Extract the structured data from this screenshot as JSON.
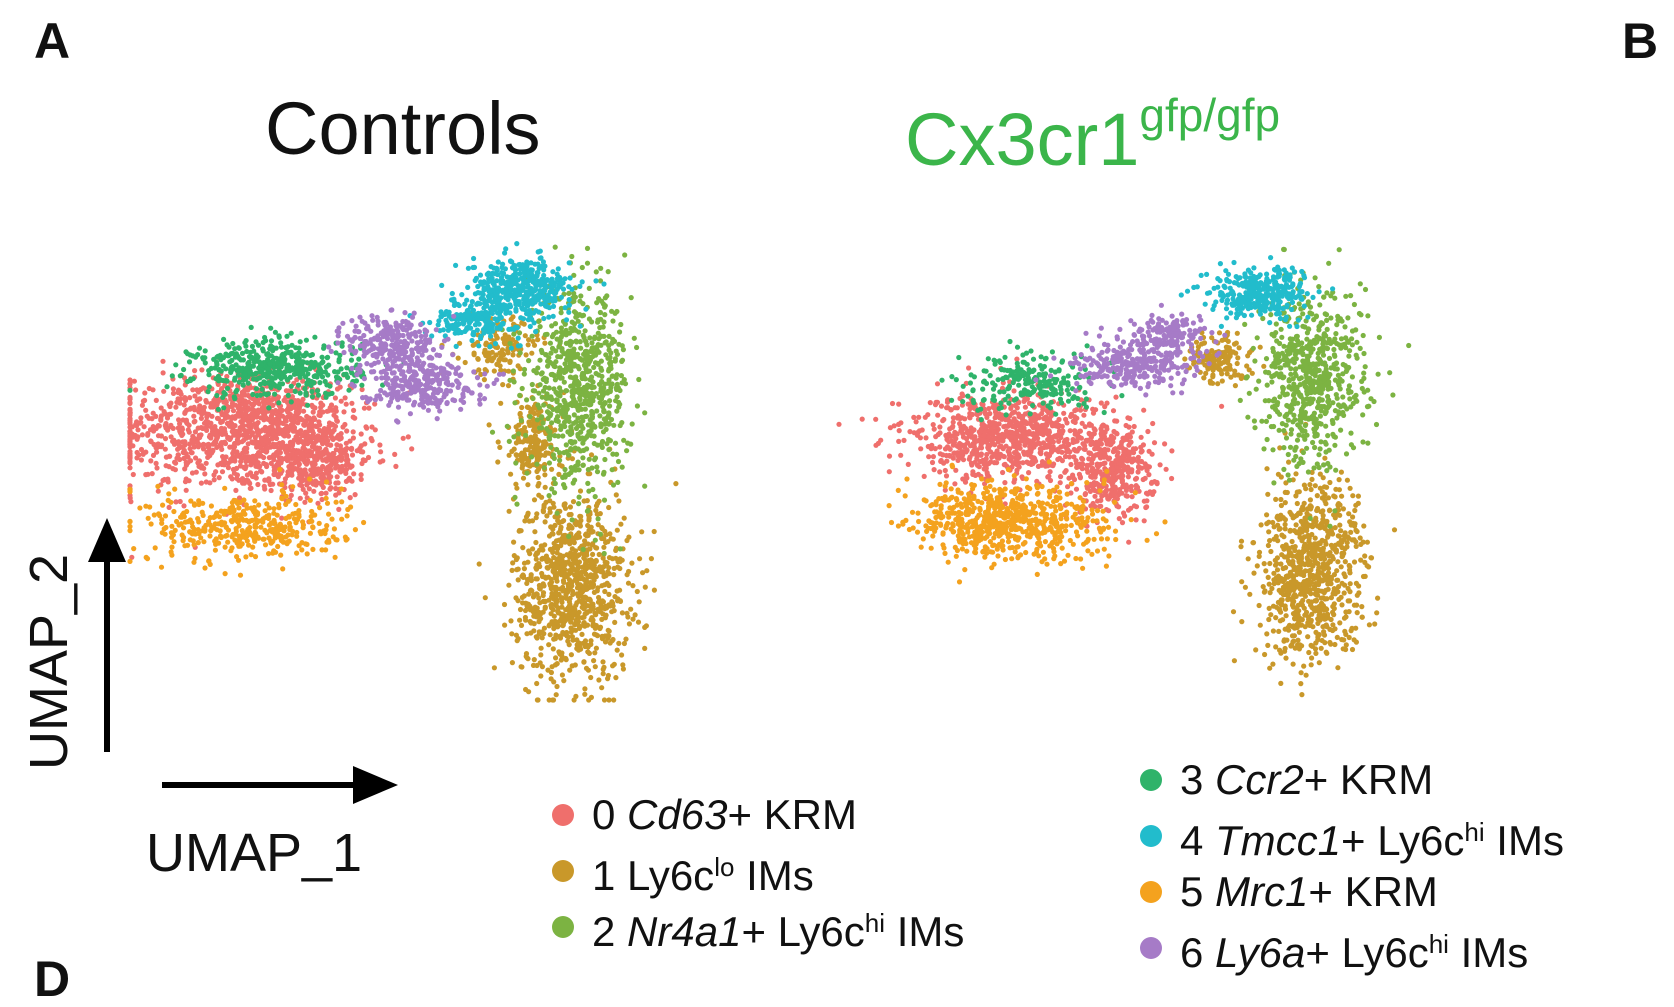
{
  "panels": {
    "a_letter": "A",
    "b_letter": "B",
    "d_letter": "D"
  },
  "titles": {
    "controls": "Controls",
    "mutant_base": "Cx3cr1",
    "mutant_sup": "gfp/gfp",
    "mutant_color": "#3bb54a"
  },
  "axes": {
    "x_label": "UMAP_1",
    "y_label": "UMAP_2"
  },
  "legend": [
    {
      "id": "0",
      "pre": "0 ",
      "italic": "Cd63",
      "post": "+ KRM",
      "sup": "",
      "tail": "",
      "color": "#ef6f6c"
    },
    {
      "id": "1",
      "pre": "1 Ly6c",
      "italic": "",
      "post": "",
      "sup": "lo",
      "tail": " IMs",
      "color": "#c9982a"
    },
    {
      "id": "2",
      "pre": "2 ",
      "italic": "Nr4a1",
      "post": "+ Ly6c",
      "sup": "hi",
      "tail": " IMs",
      "color": "#7cb342"
    },
    {
      "id": "3",
      "pre": "3 ",
      "italic": "Ccr2",
      "post": "+ KRM",
      "sup": "",
      "tail": "",
      "color": "#2fb36a"
    },
    {
      "id": "4",
      "pre": "4 ",
      "italic": "Tmcc1",
      "post": "+ Ly6c",
      "sup": "hi",
      "tail": " IMs",
      "color": "#22bccc"
    },
    {
      "id": "5",
      "pre": "5 ",
      "italic": "Mrc1",
      "post": "+ KRM",
      "sup": "",
      "tail": "",
      "color": "#f4a21e"
    },
    {
      "id": "6",
      "pre": "6 ",
      "italic": "Ly6a",
      "post": "+ Ly6c",
      "sup": "hi",
      "tail": " IMs",
      "color": "#a67bc7"
    }
  ],
  "chart_data": [
    {
      "type": "scatter",
      "title": "Controls",
      "xlabel": "UMAP_1",
      "ylabel": "UMAP_2",
      "clusters": [
        {
          "cluster": "0",
          "blobs": [
            [
              1.5,
              5.4,
              1.9,
              1.2,
              0.9
            ],
            [
              2.8,
              4.9,
              1.0,
              0.8,
              0.5
            ],
            [
              2.2,
              5.9,
              1.3,
              0.6,
              0.3
            ]
          ]
        },
        {
          "cluster": "1",
          "blobs": [
            [
              6.9,
              2.3,
              0.9,
              1.9,
              1.0
            ],
            [
              5.8,
              7.1,
              0.6,
              0.6,
              0.15
            ],
            [
              6.3,
              5.2,
              0.5,
              0.9,
              0.2
            ]
          ]
        },
        {
          "cluster": "2",
          "blobs": [
            [
              7.0,
              6.3,
              0.8,
              1.9,
              0.8
            ]
          ]
        },
        {
          "cluster": "3",
          "blobs": [
            [
              2.3,
              6.7,
              1.3,
              0.6,
              0.5
            ]
          ]
        },
        {
          "cluster": "4",
          "blobs": [
            [
              6.1,
              8.3,
              0.8,
              0.6,
              0.45
            ],
            [
              5.4,
              7.7,
              0.7,
              0.4,
              0.2
            ]
          ]
        },
        {
          "cluster": "5",
          "blobs": [
            [
              1.8,
              3.5,
              1.5,
              0.7,
              0.45
            ]
          ]
        },
        {
          "cluster": "6",
          "blobs": [
            [
              4.1,
              7.2,
              0.7,
              0.6,
              0.3
            ],
            [
              4.5,
              6.4,
              0.9,
              0.5,
              0.3
            ]
          ]
        }
      ]
    },
    {
      "type": "scatter",
      "title": "Cx3cr1 gfp/gfp",
      "xlabel": "UMAP_1",
      "ylabel": "UMAP_2",
      "clusters": [
        {
          "cluster": "0",
          "blobs": [
            [
              2.7,
              5.3,
              1.6,
              0.9,
              0.9
            ],
            [
              4.3,
              4.6,
              0.6,
              0.9,
              0.4
            ]
          ]
        },
        {
          "cluster": "1",
          "blobs": [
            [
              7.3,
              2.6,
              0.8,
              1.8,
              0.9
            ],
            [
              5.9,
              6.9,
              0.5,
              0.5,
              0.15
            ]
          ]
        },
        {
          "cluster": "2",
          "blobs": [
            [
              7.3,
              6.5,
              0.8,
              1.8,
              0.7
            ]
          ]
        },
        {
          "cluster": "3",
          "blobs": [
            [
              3.1,
              6.4,
              1.0,
              0.6,
              0.25
            ]
          ]
        },
        {
          "cluster": "4",
          "blobs": [
            [
              6.5,
              8.2,
              0.8,
              0.5,
              0.35
            ]
          ]
        },
        {
          "cluster": "5",
          "blobs": [
            [
              2.7,
              3.6,
              1.4,
              0.8,
              0.75
            ]
          ]
        },
        {
          "cluster": "6",
          "blobs": [
            [
              4.6,
              6.8,
              0.9,
              0.5,
              0.3
            ],
            [
              5.1,
              7.4,
              0.6,
              0.4,
              0.15
            ]
          ]
        }
      ]
    }
  ]
}
